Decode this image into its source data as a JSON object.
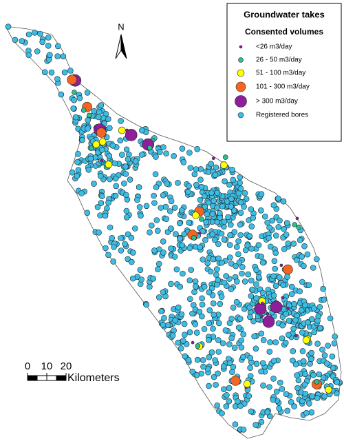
{
  "legend": {
    "title": "Groundwater takes",
    "subtitle": "Consented volumes",
    "items": [
      {
        "label": "<26 m3/day",
        "color": "#8e1e99"
      },
      {
        "label": "26 - 50 m3/day",
        "color": "#2ebf8f"
      },
      {
        "label": "51 - 100 m3/day",
        "color": "#ffff00"
      },
      {
        "label": "101 - 300 m3/day",
        "color": "#f26522"
      },
      {
        "label": "> 300 m3/day",
        "color": "#8e1e99"
      },
      {
        "label": "Registered bores",
        "color": "#3cbde4"
      }
    ]
  },
  "north_arrow": {
    "label": "N"
  },
  "scale_bar": {
    "ticks": [
      0,
      10,
      20
    ],
    "unit": "Kilometers"
  }
}
